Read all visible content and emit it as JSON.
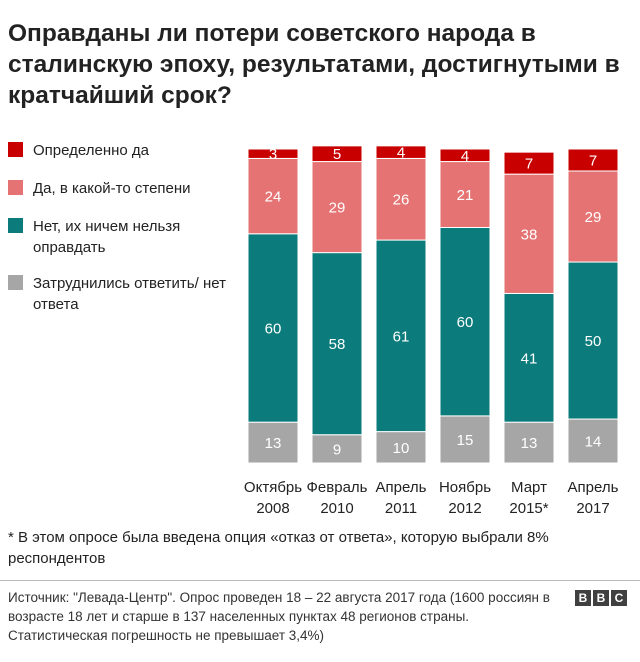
{
  "title": "Оправданы ли потери советского народа в сталинскую эпоху, результатами, достигнутыми в кратчайший срок?",
  "legend": [
    {
      "label": "Определенно да",
      "color": "#c80000"
    },
    {
      "label": "Да, в какой-то степени",
      "color": "#e57373"
    },
    {
      "label": "Нет, их ничем нельзя оправдать",
      "color": "#0c7b7b"
    },
    {
      "label": "Затруднились ответить/ нет ответа",
      "color": "#a6a6a6"
    }
  ],
  "chart_data": {
    "type": "bar",
    "stacked": true,
    "categories": [
      [
        "Октябрь",
        "2008"
      ],
      [
        "Февраль",
        "2010"
      ],
      [
        "Апрель",
        "2011"
      ],
      [
        "Ноябрь",
        "2012"
      ],
      [
        "Март",
        "2015*"
      ],
      [
        "Апрель",
        "2017"
      ]
    ],
    "series": [
      {
        "name": "Затруднились ответить/ нет ответа",
        "color": "#a6a6a6",
        "values": [
          13,
          9,
          10,
          15,
          13,
          14
        ]
      },
      {
        "name": "Нет, их ничем нельзя оправдать",
        "color": "#0c7b7b",
        "values": [
          60,
          58,
          61,
          60,
          41,
          50
        ]
      },
      {
        "name": "Да, в какой-то степени",
        "color": "#e57373",
        "values": [
          24,
          29,
          26,
          21,
          38,
          29
        ]
      },
      {
        "name": "Определенно да",
        "color": "#c80000",
        "values": [
          3,
          5,
          4,
          4,
          7,
          7
        ]
      }
    ],
    "unit": "%",
    "grid": false,
    "legend_position": "left"
  },
  "footnote": "* В этом опросе была введена опция «отказ от ответа», которую выбрали 8% респондентов",
  "source": "Источник: \"Левада-Центр\". Опрос проведен 18 – 22 августа 2017 года (1600 россиян в возрасте 18 лет и старше в 137 населенных пунктах 48 регионов страны. Статистическая погрешность не превышает 3,4%)",
  "logo": [
    "B",
    "B",
    "C"
  ]
}
